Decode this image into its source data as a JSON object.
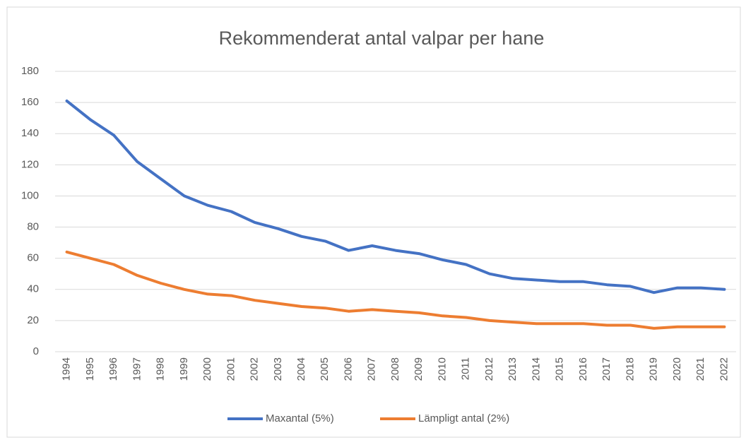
{
  "chart_data": {
    "type": "line",
    "title": "Rekommenderat antal valpar per hane",
    "categories": [
      "1994",
      "1995",
      "1996",
      "1997",
      "1998",
      "1999",
      "2000",
      "2001",
      "2002",
      "2003",
      "2004",
      "2005",
      "2006",
      "2007",
      "2008",
      "2009",
      "2010",
      "2011",
      "2012",
      "2013",
      "2014",
      "2015",
      "2016",
      "2017",
      "2018",
      "2019",
      "2020",
      "2021",
      "2022"
    ],
    "series": [
      {
        "name": "Maxantal (5%)",
        "color": "#4472c4",
        "values": [
          161,
          149,
          139,
          122,
          111,
          100,
          94,
          90,
          83,
          79,
          74,
          71,
          65,
          68,
          65,
          63,
          59,
          56,
          50,
          47,
          46,
          45,
          45,
          43,
          42,
          38,
          41,
          41,
          40
        ]
      },
      {
        "name": "Lämpligt antal (2%)",
        "color": "#ed7d31",
        "values": [
          64,
          60,
          56,
          49,
          44,
          40,
          37,
          36,
          33,
          31,
          29,
          28,
          26,
          27,
          26,
          25,
          23,
          22,
          20,
          19,
          18,
          18,
          18,
          17,
          17,
          15,
          16,
          16,
          16
        ]
      }
    ],
    "ylim": [
      0,
      180
    ],
    "yticks": [
      0,
      20,
      40,
      60,
      80,
      100,
      120,
      140,
      160,
      180
    ],
    "grid": true,
    "legend": "bottom"
  }
}
